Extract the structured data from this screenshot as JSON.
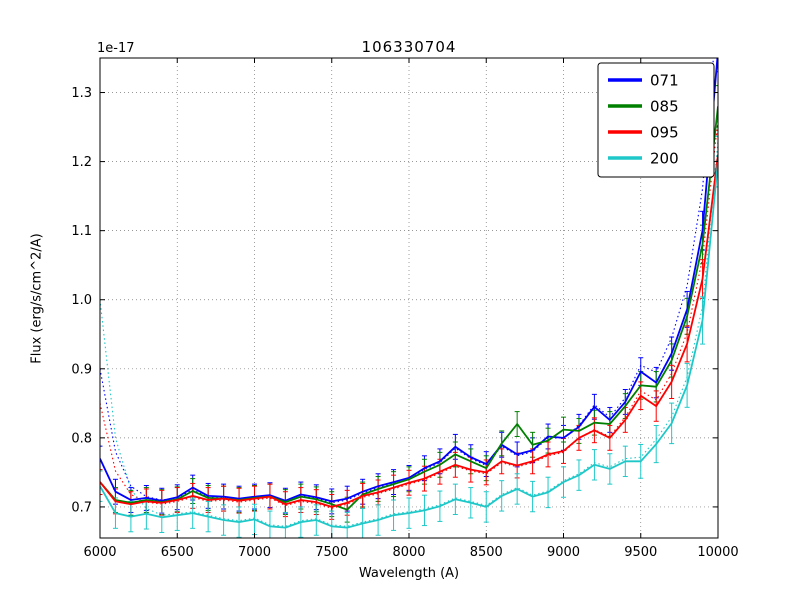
{
  "chart_data": {
    "type": "line",
    "title": "106330704",
    "xlabel": "Wavelength (A)",
    "ylabel": "Flux (erg/s/cm^2/A)",
    "offset_text": "1e-17",
    "xlim": [
      6000,
      10000
    ],
    "ylim": [
      0.655,
      1.35
    ],
    "xticks": [
      6000,
      6500,
      7000,
      7500,
      8000,
      8500,
      9000,
      9500,
      10000
    ],
    "yticks": [
      0.7,
      0.8,
      0.9,
      1.0,
      1.1,
      1.2,
      1.3
    ],
    "grid": true,
    "legend_position": "upper right",
    "x": [
      6000,
      6100,
      6200,
      6300,
      6400,
      6500,
      6600,
      6700,
      6800,
      6900,
      7000,
      7100,
      7200,
      7300,
      7400,
      7500,
      7600,
      7700,
      7800,
      7900,
      8000,
      8100,
      8200,
      8300,
      8400,
      8500,
      8600,
      8700,
      8800,
      8900,
      9000,
      9100,
      9200,
      9300,
      9400,
      9500,
      9600,
      9700,
      9800,
      9900,
      10000
    ],
    "series": [
      {
        "name": "071",
        "color": "#0000ff",
        "yerr": 0.018,
        "values": [
          0.77,
          0.722,
          0.71,
          0.713,
          0.709,
          0.714,
          0.728,
          0.716,
          0.715,
          0.712,
          0.715,
          0.717,
          0.709,
          0.718,
          0.714,
          0.708,
          0.712,
          0.722,
          0.73,
          0.736,
          0.742,
          0.756,
          0.766,
          0.787,
          0.772,
          0.762,
          0.79,
          0.776,
          0.782,
          0.802,
          0.8,
          0.816,
          0.845,
          0.826,
          0.852,
          0.896,
          0.88,
          0.922,
          0.986,
          1.1,
          1.36
        ]
      },
      {
        "name": "085",
        "color": "#008000",
        "yerr": 0.018,
        "values": [
          0.736,
          0.71,
          0.706,
          0.71,
          0.707,
          0.711,
          0.723,
          0.713,
          0.712,
          0.71,
          0.713,
          0.715,
          0.707,
          0.715,
          0.711,
          0.704,
          0.696,
          0.718,
          0.726,
          0.733,
          0.74,
          0.751,
          0.761,
          0.776,
          0.766,
          0.756,
          0.792,
          0.82,
          0.79,
          0.796,
          0.812,
          0.81,
          0.822,
          0.82,
          0.846,
          0.876,
          0.874,
          0.912,
          0.976,
          1.08,
          1.28
        ]
      },
      {
        "name": "095",
        "color": "#ff0000",
        "yerr": 0.018,
        "values": [
          0.736,
          0.708,
          0.704,
          0.708,
          0.706,
          0.71,
          0.716,
          0.71,
          0.712,
          0.709,
          0.712,
          0.715,
          0.704,
          0.71,
          0.707,
          0.7,
          0.706,
          0.716,
          0.721,
          0.728,
          0.735,
          0.741,
          0.751,
          0.761,
          0.754,
          0.75,
          0.766,
          0.76,
          0.766,
          0.776,
          0.781,
          0.8,
          0.811,
          0.8,
          0.826,
          0.861,
          0.846,
          0.881,
          0.936,
          1.03,
          1.21
        ]
      },
      {
        "name": "200",
        "color": "#1fc8c8",
        "yerr": 0.022,
        "values": [
          0.73,
          0.691,
          0.686,
          0.69,
          0.685,
          0.688,
          0.691,
          0.686,
          0.681,
          0.678,
          0.682,
          0.672,
          0.67,
          0.678,
          0.681,
          0.672,
          0.67,
          0.676,
          0.681,
          0.688,
          0.691,
          0.695,
          0.701,
          0.711,
          0.706,
          0.7,
          0.716,
          0.726,
          0.715,
          0.721,
          0.736,
          0.746,
          0.761,
          0.755,
          0.766,
          0.766,
          0.791,
          0.821,
          0.876,
          0.97,
          1.2
        ]
      }
    ],
    "dotted_series": [
      {
        "name": "071-dotted",
        "color": "#0000ff",
        "values": [
          0.9,
          0.78,
          0.73,
          0.715,
          0.71,
          0.713,
          0.725,
          0.714,
          0.713,
          0.71,
          0.713,
          0.715,
          0.707,
          0.716,
          0.712,
          0.706,
          0.71,
          0.72,
          0.728,
          0.734,
          0.74,
          0.754,
          0.764,
          0.785,
          0.77,
          0.76,
          0.788,
          0.774,
          0.78,
          0.8,
          0.8,
          0.818,
          0.848,
          0.83,
          0.858,
          0.905,
          0.895,
          0.945,
          1.02,
          1.16,
          1.43
        ]
      },
      {
        "name": "095-dotted",
        "color": "#ff0000",
        "values": [
          0.85,
          0.752,
          0.718,
          0.707,
          0.704,
          0.708,
          0.714,
          0.708,
          0.71,
          0.707,
          0.71,
          0.713,
          0.702,
          0.708,
          0.705,
          0.698,
          0.704,
          0.714,
          0.719,
          0.726,
          0.733,
          0.739,
          0.749,
          0.759,
          0.752,
          0.748,
          0.764,
          0.758,
          0.764,
          0.774,
          0.779,
          0.8,
          0.812,
          0.802,
          0.83,
          0.868,
          0.855,
          0.893,
          0.952,
          1.06,
          1.26
        ]
      },
      {
        "name": "200-dotted",
        "color": "#1fc8c8",
        "values": [
          1.0,
          0.8,
          0.725,
          0.698,
          0.688,
          0.69,
          0.693,
          0.688,
          0.683,
          0.68,
          0.684,
          0.674,
          0.672,
          0.68,
          0.683,
          0.674,
          0.672,
          0.678,
          0.683,
          0.69,
          0.693,
          0.697,
          0.703,
          0.713,
          0.708,
          0.702,
          0.718,
          0.728,
          0.717,
          0.723,
          0.738,
          0.748,
          0.764,
          0.758,
          0.77,
          0.772,
          0.798,
          0.83,
          0.888,
          0.99,
          1.23
        ]
      }
    ]
  }
}
